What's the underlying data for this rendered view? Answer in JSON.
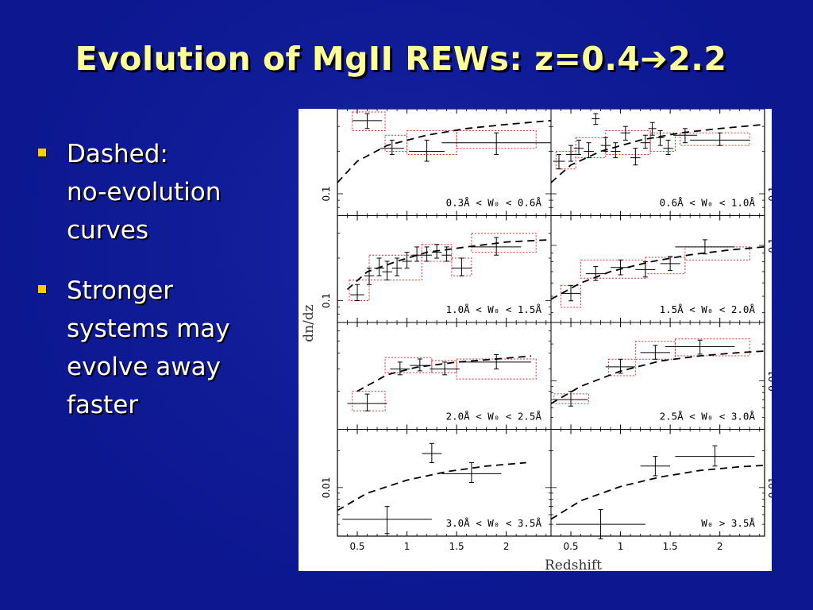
{
  "slide": {
    "title": "Evolution of MgII REWs: z=0.4➔2.2"
  },
  "bullets": [
    {
      "text": "Dashed:\nno-evolution\ncurves"
    },
    {
      "text": "Stronger\nsystems may\nevolve away\nfaster"
    }
  ],
  "colors": {
    "background": "#0c1790",
    "title": "#ffff99",
    "bullet_marker": "#ffcc00",
    "bullet_text": "#ffffff",
    "box_outline": "#e03030"
  },
  "chart_data": {
    "type": "scatter",
    "xlabel": "Redshift",
    "ylabel": "dn/dz",
    "xlim": [
      0.3,
      2.45
    ],
    "x_ticks": [
      0.5,
      1,
      1.5,
      2
    ],
    "x_tick_labels": [
      "0.5",
      "1",
      "1.5",
      "2"
    ],
    "log_y": true,
    "panels": [
      {
        "label": "0.3Å < W₀ < 0.6Å",
        "ylim": [
          0.07,
          0.4
        ],
        "y_tick": 0.1,
        "y_tick_side": "left",
        "curve": [
          [
            0.3,
            0.12
          ],
          [
            0.5,
            0.17
          ],
          [
            0.8,
            0.22
          ],
          [
            1.2,
            0.26
          ],
          [
            1.6,
            0.29
          ],
          [
            2.0,
            0.31
          ],
          [
            2.45,
            0.33
          ]
        ],
        "points": [
          {
            "x": 0.6,
            "xerr": 0.15,
            "y": 0.33,
            "ylo": 0.29,
            "yhi": 0.37
          },
          {
            "x": 0.85,
            "xerr": 0.12,
            "y": 0.21,
            "ylo": 0.19,
            "yhi": 0.24
          },
          {
            "x": 1.2,
            "xerr": 0.18,
            "y": 0.2,
            "ylo": 0.17,
            "yhi": 0.24
          },
          {
            "x": 1.9,
            "xerr": 0.55,
            "y": 0.23,
            "ylo": 0.19,
            "yhi": 0.27
          }
        ],
        "boxes": [
          [
            0.45,
            0.78,
            0.28,
            0.38
          ],
          [
            0.78,
            1.0,
            0.2,
            0.26
          ],
          [
            1.0,
            1.5,
            0.19,
            0.28
          ],
          [
            1.5,
            2.3,
            0.21,
            0.28
          ]
        ]
      },
      {
        "label": "0.6Å < W₀ < 1.0Å",
        "ylim": [
          0.07,
          0.4
        ],
        "y_tick": 0.1,
        "y_tick_side": "right",
        "curve": [
          [
            0.3,
            0.12
          ],
          [
            0.5,
            0.16
          ],
          [
            0.8,
            0.2
          ],
          [
            1.2,
            0.24
          ],
          [
            1.6,
            0.27
          ],
          [
            2.0,
            0.29
          ],
          [
            2.45,
            0.31
          ]
        ],
        "points": [
          {
            "x": 0.38,
            "xerr": 0.06,
            "y": 0.17,
            "ylo": 0.15,
            "yhi": 0.19
          },
          {
            "x": 0.5,
            "xerr": 0.05,
            "y": 0.19,
            "ylo": 0.17,
            "yhi": 0.22
          },
          {
            "x": 0.58,
            "xerr": 0.05,
            "y": 0.21,
            "ylo": 0.19,
            "yhi": 0.24
          },
          {
            "x": 0.68,
            "xerr": 0.05,
            "y": 0.2,
            "ylo": 0.18,
            "yhi": 0.23
          },
          {
            "x": 0.75,
            "xerr": 0.04,
            "y": 0.34,
            "ylo": 0.31,
            "yhi": 0.37
          },
          {
            "x": 0.85,
            "xerr": 0.05,
            "y": 0.22,
            "ylo": 0.2,
            "yhi": 0.25
          },
          {
            "x": 0.95,
            "xerr": 0.05,
            "y": 0.2,
            "ylo": 0.18,
            "yhi": 0.23
          },
          {
            "x": 1.05,
            "xerr": 0.05,
            "y": 0.27,
            "ylo": 0.24,
            "yhi": 0.3
          },
          {
            "x": 1.15,
            "xerr": 0.05,
            "y": 0.18,
            "ylo": 0.16,
            "yhi": 0.21
          },
          {
            "x": 1.25,
            "xerr": 0.05,
            "y": 0.23,
            "ylo": 0.21,
            "yhi": 0.26
          },
          {
            "x": 1.32,
            "xerr": 0.04,
            "y": 0.29,
            "ylo": 0.26,
            "yhi": 0.32
          },
          {
            "x": 1.4,
            "xerr": 0.04,
            "y": 0.25,
            "ylo": 0.22,
            "yhi": 0.28
          },
          {
            "x": 1.48,
            "xerr": 0.05,
            "y": 0.21,
            "ylo": 0.19,
            "yhi": 0.24
          },
          {
            "x": 1.65,
            "xerr": 0.12,
            "y": 0.26,
            "ylo": 0.23,
            "yhi": 0.29
          },
          {
            "x": 2.0,
            "xerr": 0.3,
            "y": 0.24,
            "ylo": 0.22,
            "yhi": 0.27
          }
        ],
        "boxes": [
          [
            0.35,
            0.55,
            0.15,
            0.2
          ],
          [
            0.55,
            0.85,
            0.18,
            0.25
          ],
          [
            0.85,
            1.3,
            0.19,
            0.28
          ],
          [
            1.3,
            1.55,
            0.2,
            0.27
          ],
          [
            1.6,
            2.3,
            0.22,
            0.27
          ]
        ]
      },
      {
        "label": "1.0Å < W₀ < 1.5Å",
        "ylim": [
          0.07,
          0.4
        ],
        "y_tick": 0.1,
        "y_tick_side": "left",
        "curve": [
          [
            0.4,
            0.12
          ],
          [
            0.6,
            0.16
          ],
          [
            0.9,
            0.19
          ],
          [
            1.2,
            0.22
          ],
          [
            1.6,
            0.24
          ],
          [
            2.0,
            0.26
          ],
          [
            2.45,
            0.27
          ]
        ],
        "points": [
          {
            "x": 0.5,
            "xerr": 0.07,
            "y": 0.11,
            "ylo": 0.1,
            "yhi": 0.13
          },
          {
            "x": 0.62,
            "xerr": 0.05,
            "y": 0.15,
            "ylo": 0.13,
            "yhi": 0.17
          },
          {
            "x": 0.72,
            "xerr": 0.05,
            "y": 0.17,
            "ylo": 0.15,
            "yhi": 0.2
          },
          {
            "x": 0.8,
            "xerr": 0.05,
            "y": 0.16,
            "ylo": 0.14,
            "yhi": 0.19
          },
          {
            "x": 0.9,
            "xerr": 0.05,
            "y": 0.17,
            "ylo": 0.15,
            "yhi": 0.2
          },
          {
            "x": 1.0,
            "xerr": 0.05,
            "y": 0.19,
            "ylo": 0.17,
            "yhi": 0.22
          },
          {
            "x": 1.1,
            "xerr": 0.05,
            "y": 0.21,
            "ylo": 0.19,
            "yhi": 0.24
          },
          {
            "x": 1.2,
            "xerr": 0.05,
            "y": 0.21,
            "ylo": 0.19,
            "yhi": 0.24
          },
          {
            "x": 1.3,
            "xerr": 0.05,
            "y": 0.22,
            "ylo": 0.2,
            "yhi": 0.25
          },
          {
            "x": 1.4,
            "xerr": 0.05,
            "y": 0.21,
            "ylo": 0.19,
            "yhi": 0.24
          },
          {
            "x": 1.55,
            "xerr": 0.1,
            "y": 0.17,
            "ylo": 0.15,
            "yhi": 0.2
          },
          {
            "x": 1.9,
            "xerr": 0.25,
            "y": 0.24,
            "ylo": 0.21,
            "yhi": 0.28
          }
        ],
        "boxes": [
          [
            0.42,
            0.62,
            0.1,
            0.14
          ],
          [
            0.62,
            1.15,
            0.14,
            0.21
          ],
          [
            1.15,
            1.45,
            0.19,
            0.25
          ],
          [
            1.45,
            1.65,
            0.15,
            0.2
          ],
          [
            1.65,
            2.3,
            0.22,
            0.3
          ]
        ]
      },
      {
        "label": "1.5Å < W₀ < 2.0Å",
        "ylim": [
          0.035,
          0.15
        ],
        "y_tick": 0.1,
        "y_tick_side": "right",
        "curve": [
          [
            0.3,
            0.048
          ],
          [
            0.6,
            0.06
          ],
          [
            0.9,
            0.07
          ],
          [
            1.3,
            0.08
          ],
          [
            1.7,
            0.088
          ],
          [
            2.1,
            0.094
          ],
          [
            2.45,
            0.098
          ]
        ],
        "points": [
          {
            "x": 0.5,
            "xerr": 0.1,
            "y": 0.052,
            "ylo": 0.047,
            "yhi": 0.058
          },
          {
            "x": 0.75,
            "xerr": 0.1,
            "y": 0.068,
            "ylo": 0.062,
            "yhi": 0.075
          },
          {
            "x": 1.0,
            "xerr": 0.1,
            "y": 0.074,
            "ylo": 0.067,
            "yhi": 0.082
          },
          {
            "x": 1.25,
            "xerr": 0.1,
            "y": 0.072,
            "ylo": 0.065,
            "yhi": 0.08
          },
          {
            "x": 1.5,
            "xerr": 0.1,
            "y": 0.078,
            "ylo": 0.071,
            "yhi": 0.086
          },
          {
            "x": 1.85,
            "xerr": 0.3,
            "y": 0.098,
            "ylo": 0.089,
            "yhi": 0.108
          }
        ],
        "boxes": [
          [
            0.4,
            0.6,
            0.043,
            0.058
          ],
          [
            0.6,
            1.25,
            0.064,
            0.082
          ],
          [
            1.25,
            1.65,
            0.068,
            0.085
          ],
          [
            1.65,
            2.3,
            0.082,
            0.098
          ]
        ]
      },
      {
        "label": "2.0Å < W₀ < 2.5Å",
        "ylim": [
          0.01,
          0.07
        ],
        "y_tick": null,
        "y_tick_side": "left",
        "curve": [
          [
            0.5,
            0.02
          ],
          [
            0.8,
            0.027
          ],
          [
            1.1,
            0.031
          ],
          [
            1.5,
            0.034
          ],
          [
            1.9,
            0.036
          ],
          [
            2.25,
            0.038
          ]
        ],
        "points": [
          {
            "x": 0.6,
            "xerr": 0.2,
            "y": 0.016,
            "ylo": 0.014,
            "yhi": 0.019
          },
          {
            "x": 0.93,
            "xerr": 0.1,
            "y": 0.03,
            "ylo": 0.027,
            "yhi": 0.034
          },
          {
            "x": 1.13,
            "xerr": 0.1,
            "y": 0.032,
            "ylo": 0.029,
            "yhi": 0.036
          },
          {
            "x": 1.38,
            "xerr": 0.15,
            "y": 0.03,
            "ylo": 0.027,
            "yhi": 0.034
          },
          {
            "x": 1.9,
            "xerr": 0.35,
            "y": 0.034,
            "ylo": 0.03,
            "yhi": 0.039
          }
        ],
        "boxes": [
          [
            0.45,
            0.78,
            0.014,
            0.02
          ],
          [
            0.78,
            1.25,
            0.028,
            0.037
          ],
          [
            1.25,
            1.5,
            0.028,
            0.035
          ],
          [
            1.5,
            2.3,
            0.025,
            0.036
          ]
        ]
      },
      {
        "label": "2.5Å < W₀ < 3.0Å",
        "ylim": [
          0.004,
          0.03
        ],
        "y_tick": 0.01,
        "y_tick_side": "right",
        "curve": [
          [
            0.3,
            0.0065
          ],
          [
            0.6,
            0.009
          ],
          [
            1.0,
            0.012
          ],
          [
            1.4,
            0.0145
          ],
          [
            1.8,
            0.016
          ],
          [
            2.2,
            0.017
          ],
          [
            2.45,
            0.0175
          ]
        ],
        "points": [
          {
            "x": 0.5,
            "xerr": 0.17,
            "y": 0.007,
            "ylo": 0.0062,
            "yhi": 0.0082
          },
          {
            "x": 1.0,
            "xerr": 0.15,
            "y": 0.013,
            "ylo": 0.0115,
            "yhi": 0.015
          },
          {
            "x": 1.35,
            "xerr": 0.15,
            "y": 0.017,
            "ylo": 0.015,
            "yhi": 0.0195
          },
          {
            "x": 1.8,
            "xerr": 0.35,
            "y": 0.019,
            "ylo": 0.0165,
            "yhi": 0.0215
          }
        ],
        "boxes": [
          [
            0.33,
            0.68,
            0.0065,
            0.0078
          ],
          [
            0.88,
            1.15,
            0.011,
            0.015
          ],
          [
            1.15,
            1.55,
            0.015,
            0.021
          ],
          [
            1.55,
            2.3,
            0.016,
            0.022
          ]
        ]
      },
      {
        "label": "3.0Å < W₀ < 3.5Å",
        "ylim": [
          0.004,
          0.03
        ],
        "y_tick": 0.01,
        "y_tick_side": "left",
        "curve": [
          [
            0.3,
            0.0065
          ],
          [
            0.6,
            0.009
          ],
          [
            1.0,
            0.0115
          ],
          [
            1.4,
            0.0135
          ],
          [
            1.8,
            0.015
          ],
          [
            2.2,
            0.016
          ]
        ],
        "points": [
          {
            "x": 0.8,
            "xerr": 0.45,
            "y": 0.0055,
            "ylo": 0.0042,
            "yhi": 0.007
          },
          {
            "x": 1.25,
            "xerr": 0.1,
            "y": 0.019,
            "ylo": 0.016,
            "yhi": 0.023
          },
          {
            "x": 1.65,
            "xerr": 0.3,
            "y": 0.013,
            "ylo": 0.011,
            "yhi": 0.016
          }
        ],
        "boxes": []
      },
      {
        "label": "W₀ > 3.5Å",
        "ylim": [
          0.004,
          0.03
        ],
        "y_tick": 0.01,
        "y_tick_side": "right",
        "curve": [
          [
            0.3,
            0.0055
          ],
          [
            0.6,
            0.0078
          ],
          [
            1.0,
            0.0102
          ],
          [
            1.4,
            0.0122
          ],
          [
            1.8,
            0.0138
          ],
          [
            2.2,
            0.0148
          ],
          [
            2.45,
            0.0152
          ]
        ],
        "points": [
          {
            "x": 0.8,
            "xerr": 0.45,
            "y": 0.005,
            "ylo": 0.0038,
            "yhi": 0.0066
          },
          {
            "x": 1.35,
            "xerr": 0.15,
            "y": 0.015,
            "ylo": 0.0125,
            "yhi": 0.018
          },
          {
            "x": 1.95,
            "xerr": 0.4,
            "y": 0.018,
            "ylo": 0.015,
            "yhi": 0.022
          }
        ],
        "boxes": []
      }
    ]
  }
}
